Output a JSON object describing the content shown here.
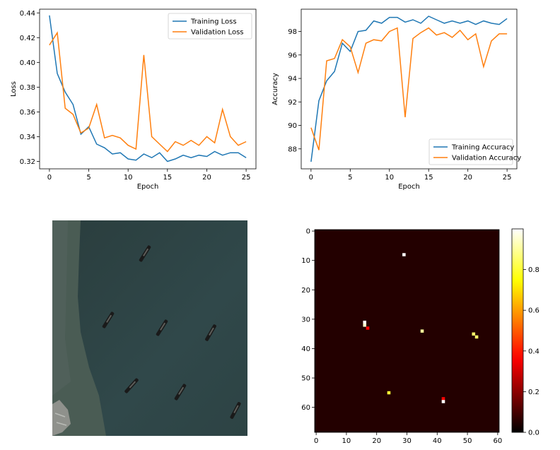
{
  "chart_data": [
    {
      "type": "line",
      "xlabel": "Epoch",
      "ylabel": "Loss",
      "xlim": [
        -1.25,
        26.25
      ],
      "ylim": [
        0.314,
        0.443
      ],
      "xticks": [
        0,
        5,
        10,
        15,
        20,
        25
      ],
      "yticks": [
        0.32,
        0.34,
        0.36,
        0.38,
        0.4,
        0.42,
        0.44
      ],
      "ytick_labels": [
        "0.32",
        "0.34",
        "0.36",
        "0.38",
        "0.40",
        "0.42",
        "0.44"
      ],
      "legend_position": "upper-right",
      "x": [
        0,
        1,
        2,
        3,
        4,
        5,
        6,
        7,
        8,
        9,
        10,
        11,
        12,
        13,
        14,
        15,
        16,
        17,
        18,
        19,
        20,
        21,
        22,
        23,
        24,
        25
      ],
      "series": [
        {
          "name": "Training Loss",
          "color": "#1f77b4",
          "values": [
            0.438,
            0.391,
            0.376,
            0.366,
            0.342,
            0.348,
            0.334,
            0.331,
            0.326,
            0.327,
            0.322,
            0.321,
            0.326,
            0.323,
            0.327,
            0.32,
            0.322,
            0.325,
            0.323,
            0.325,
            0.324,
            0.328,
            0.325,
            0.327,
            0.327,
            0.323
          ]
        },
        {
          "name": "Validation Loss",
          "color": "#ff7f0e",
          "values": [
            0.414,
            0.424,
            0.363,
            0.358,
            0.343,
            0.347,
            0.366,
            0.339,
            0.341,
            0.339,
            0.333,
            0.33,
            0.406,
            0.34,
            0.334,
            0.328,
            0.336,
            0.333,
            0.337,
            0.333,
            0.34,
            0.335,
            0.362,
            0.34,
            0.333,
            0.336
          ]
        }
      ]
    },
    {
      "type": "line",
      "xlabel": "Epoch",
      "ylabel": "Accuracy",
      "xlim": [
        -1.25,
        26.25
      ],
      "ylim": [
        86.3,
        99.9
      ],
      "xticks": [
        0,
        5,
        10,
        15,
        20,
        25
      ],
      "yticks": [
        88,
        90,
        92,
        94,
        96,
        98
      ],
      "ytick_labels": [
        "88",
        "90",
        "92",
        "94",
        "96",
        "98"
      ],
      "legend_position": "lower-right",
      "x": [
        0,
        1,
        2,
        3,
        4,
        5,
        6,
        7,
        8,
        9,
        10,
        11,
        12,
        13,
        14,
        15,
        16,
        17,
        18,
        19,
        20,
        21,
        22,
        23,
        24,
        25
      ],
      "series": [
        {
          "name": "Training Accuracy",
          "color": "#1f77b4",
          "values": [
            86.9,
            92.1,
            93.8,
            94.6,
            97.0,
            96.3,
            98.0,
            98.1,
            98.9,
            98.7,
            99.2,
            99.2,
            98.8,
            99.0,
            98.7,
            99.3,
            99.0,
            98.7,
            98.9,
            98.7,
            98.9,
            98.6,
            98.9,
            98.7,
            98.6,
            99.1
          ]
        },
        {
          "name": "Validation Accuracy",
          "color": "#ff7f0e",
          "values": [
            89.8,
            87.9,
            95.5,
            95.7,
            97.3,
            96.7,
            94.5,
            97.0,
            97.3,
            97.2,
            98.0,
            98.3,
            90.7,
            97.4,
            97.9,
            98.3,
            97.7,
            97.9,
            97.5,
            98.1,
            97.3,
            97.8,
            95.0,
            97.2,
            97.8,
            97.8
          ]
        }
      ]
    },
    {
      "type": "heatmap",
      "colormap": "hot",
      "shape": [
        69,
        61
      ],
      "xticks": [
        0,
        10,
        20,
        30,
        40,
        50,
        60
      ],
      "yticks": [
        0,
        10,
        20,
        30,
        40,
        50,
        60
      ],
      "colorbar_range": [
        0.0,
        1.0
      ],
      "colorbar_ticks": [
        0.0,
        0.2,
        0.4,
        0.6,
        0.8
      ],
      "colorbar_tick_labels": [
        "0.0",
        "0.2",
        "0.4",
        "0.6",
        "0.8"
      ],
      "background_value": 0.05,
      "cells": [
        {
          "x": 29,
          "y": 8,
          "v": 1.0
        },
        {
          "x": 16,
          "y": 31,
          "v": 1.0
        },
        {
          "x": 16,
          "y": 32,
          "v": 0.95
        },
        {
          "x": 17,
          "y": 33,
          "v": 0.35
        },
        {
          "x": 35,
          "y": 34,
          "v": 0.9
        },
        {
          "x": 52,
          "y": 35,
          "v": 0.85
        },
        {
          "x": 53,
          "y": 36,
          "v": 0.85
        },
        {
          "x": 24,
          "y": 55,
          "v": 0.8
        },
        {
          "x": 42,
          "y": 57,
          "v": 0.35
        },
        {
          "x": 42,
          "y": 58,
          "v": 1.0
        }
      ]
    }
  ],
  "aerial_image": {
    "colors": {
      "water": "#2f4443",
      "land": "#4a5c54",
      "dock": "#8f918c",
      "ship": "#1a1a1a"
    }
  }
}
